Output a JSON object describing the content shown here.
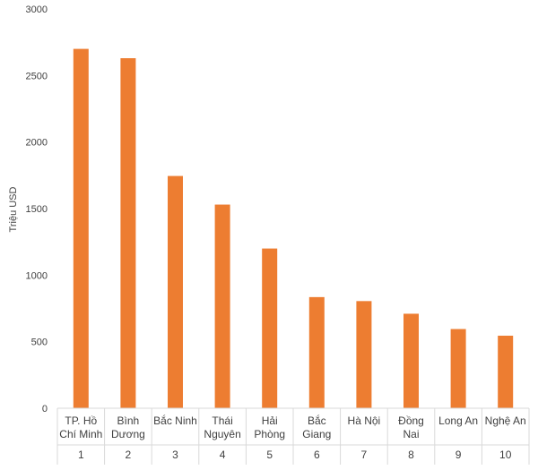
{
  "chart_data": {
    "type": "bar",
    "title": "",
    "xlabel": "",
    "ylabel": "Triệu USD",
    "ylim": [
      0,
      3000
    ],
    "y_ticks": [
      0,
      500,
      1000,
      1500,
      2000,
      2500,
      3000
    ],
    "grid": false,
    "legend": "none",
    "categories": [
      {
        "name_lines": [
          "TP. Hồ",
          "Chí Minh"
        ],
        "rank": "1"
      },
      {
        "name_lines": [
          "Bình",
          "Dương"
        ],
        "rank": "2"
      },
      {
        "name_lines": [
          "Bắc Ninh"
        ],
        "rank": "3"
      },
      {
        "name_lines": [
          "Thái",
          "Nguyên"
        ],
        "rank": "4"
      },
      {
        "name_lines": [
          "Hải",
          "Phòng"
        ],
        "rank": "5"
      },
      {
        "name_lines": [
          "Bắc",
          "Giang"
        ],
        "rank": "6"
      },
      {
        "name_lines": [
          "Hà Nội"
        ],
        "rank": "7"
      },
      {
        "name_lines": [
          "Đồng",
          "Nai"
        ],
        "rank": "8"
      },
      {
        "name_lines": [
          "Long An"
        ],
        "rank": "9"
      },
      {
        "name_lines": [
          "Nghệ An"
        ],
        "rank": "10"
      }
    ],
    "values": [
      2700,
      2630,
      1745,
      1530,
      1200,
      835,
      805,
      710,
      595,
      545
    ],
    "bar_color": "#ED7D31"
  }
}
